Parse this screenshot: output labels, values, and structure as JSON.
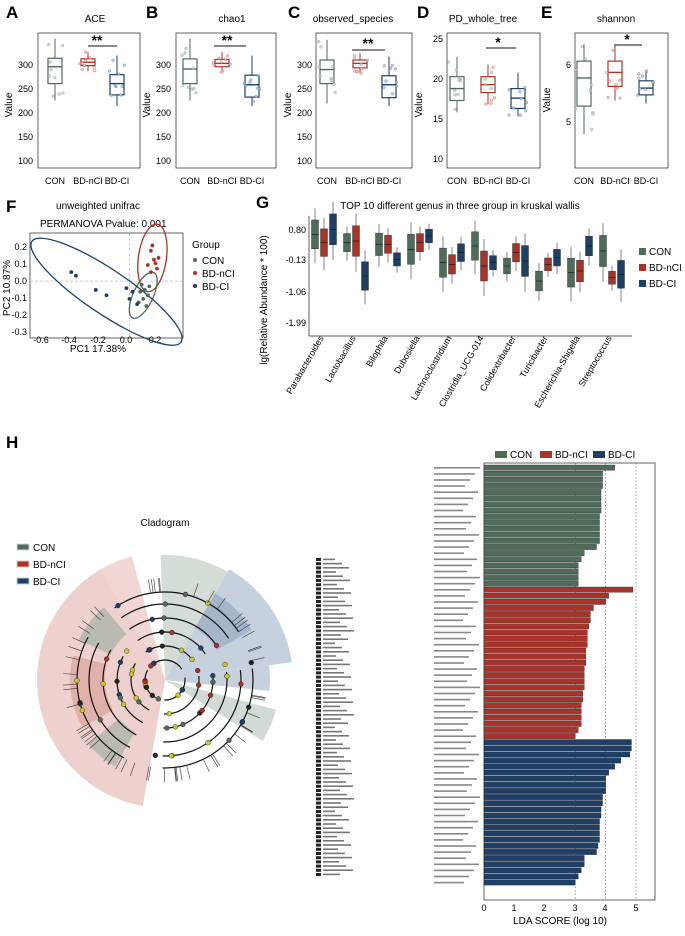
{
  "figure": {
    "panels": {
      "A": {
        "label": "A",
        "title": "ACE",
        "ylabel": "Value",
        "yticks": [
          "300",
          "250",
          "200",
          "150",
          "100"
        ],
        "sig": "**"
      },
      "B": {
        "label": "B",
        "title": "chao1",
        "ylabel": "Value",
        "yticks": [
          "300",
          "250",
          "200",
          "150",
          "100"
        ],
        "sig": "**"
      },
      "C": {
        "label": "C",
        "title": "observed_species",
        "ylabel": "Value",
        "yticks": [
          "300",
          "250",
          "200",
          "150",
          "100"
        ],
        "sig": "**"
      },
      "D": {
        "label": "D",
        "title": "PD_whole_tree",
        "ylabel": "Value",
        "yticks": [
          "25",
          "20",
          "15",
          "10"
        ],
        "sig": "*"
      },
      "E": {
        "label": "E",
        "title": "shannon",
        "ylabel": "Value",
        "yticks": [
          "6",
          "5"
        ],
        "sig": "*"
      }
    },
    "groups": [
      "CON",
      "BD-nCI",
      "BD-CI"
    ],
    "colors": {
      "CON": "#4f6b5a",
      "BD-nCI": "#a8332a",
      "BD-CI": "#1f3f66",
      "CON_fill": "#c9d3cc",
      "BD-nCI_fill": "#e8c2bd",
      "BD-CI_fill": "#b9c6d6"
    },
    "panelF": {
      "label": "F",
      "title": "unweighted unifrac",
      "subtitle": "PERMANOVA Pvalue: 0.001",
      "xlabel": "PC1 17.38%",
      "ylabel": "PC2 10.87%",
      "xticks": [
        "-0.6",
        "-0.4",
        "-0.2",
        "0.0",
        "0.2"
      ],
      "yticks": [
        "0.2",
        "0.1",
        "0.0",
        "-0.1",
        "-0.2",
        "-0.3"
      ],
      "legend_title": "Group"
    },
    "panelG": {
      "label": "G",
      "title": "TOP 10 different genus in three group in kruskal wallis",
      "ylabel": "lg(Relative Abundance * 100)",
      "yticks": [
        "0.80",
        "-0.13",
        "-1.06",
        "-1.99"
      ],
      "genera": [
        "Parabacteroides",
        "Lactobacillus",
        "Bilophila",
        "Dubosiella",
        "Lachnoclostridium",
        "Clostridia_UCG-014",
        "Colidextribacter",
        "Turicibacter",
        "Escherichia-Shigella",
        "Streptococcus"
      ]
    },
    "panelH": {
      "label": "H",
      "cladogram_title": "Cladogram",
      "lda_xlabel": "LDA SCORE (log 10)",
      "lda_xticks": [
        "0",
        "1",
        "2",
        "3",
        "4",
        "5"
      ]
    }
  },
  "chart_data": [
    {
      "type": "box",
      "title": "ACE",
      "ylabel": "Value",
      "categories": [
        "CON",
        "BD-nCI",
        "BD-CI"
      ],
      "ylim": [
        90,
        330
      ],
      "series": [
        {
          "name": "CON",
          "q1": 240,
          "median": 270,
          "q3": 285,
          "min": 210,
          "max": 320
        },
        {
          "name": "BD-nCI",
          "q1": 272,
          "median": 278,
          "q3": 284,
          "min": 262,
          "max": 296
        },
        {
          "name": "BD-CI",
          "q1": 220,
          "median": 240,
          "q3": 256,
          "min": 200,
          "max": 290
        }
      ]
    },
    {
      "type": "box",
      "title": "chao1",
      "ylabel": "Value",
      "categories": [
        "CON",
        "BD-nCI",
        "BD-CI"
      ],
      "ylim": [
        90,
        330
      ],
      "series": [
        {
          "name": "CON",
          "q1": 240,
          "median": 266,
          "q3": 284,
          "min": 210,
          "max": 320
        },
        {
          "name": "BD-nCI",
          "q1": 270,
          "median": 276,
          "q3": 283,
          "min": 260,
          "max": 296
        },
        {
          "name": "BD-CI",
          "q1": 216,
          "median": 238,
          "q3": 255,
          "min": 200,
          "max": 290
        }
      ]
    },
    {
      "type": "box",
      "title": "observed_species",
      "ylabel": "Value",
      "categories": [
        "CON",
        "BD-nCI",
        "BD-CI"
      ],
      "ylim": [
        90,
        330
      ],
      "series": [
        {
          "name": "CON",
          "q1": 240,
          "median": 265,
          "q3": 282,
          "min": 205,
          "max": 318
        },
        {
          "name": "BD-nCI",
          "q1": 268,
          "median": 276,
          "q3": 282,
          "min": 258,
          "max": 294
        },
        {
          "name": "BD-CI",
          "q1": 215,
          "median": 238,
          "q3": 254,
          "min": 200,
          "max": 288
        }
      ]
    },
    {
      "type": "box",
      "title": "PD_whole_tree",
      "ylabel": "Value",
      "categories": [
        "CON",
        "BD-nCI",
        "BD-CI"
      ],
      "ylim": [
        9,
        26
      ],
      "series": [
        {
          "name": "CON",
          "q1": 17.5,
          "median": 19,
          "q3": 20.5,
          "min": 16,
          "max": 23
        },
        {
          "name": "BD-nCI",
          "q1": 18.5,
          "median": 19.5,
          "q3": 20.5,
          "min": 17,
          "max": 22
        },
        {
          "name": "BD-CI",
          "q1": 16.5,
          "median": 17.8,
          "q3": 19,
          "min": 15.5,
          "max": 21
        }
      ]
    },
    {
      "type": "box",
      "title": "shannon",
      "ylabel": "Value",
      "categories": [
        "CON",
        "BD-nCI",
        "BD-CI"
      ],
      "ylim": [
        4.3,
        6.7
      ],
      "series": [
        {
          "name": "CON",
          "q1": 5.4,
          "median": 5.9,
          "q3": 6.2,
          "min": 4.9,
          "max": 6.5
        },
        {
          "name": "BD-nCI",
          "q1": 5.75,
          "median": 6.0,
          "q3": 6.2,
          "min": 5.5,
          "max": 6.5
        },
        {
          "name": "BD-CI",
          "q1": 5.6,
          "median": 5.72,
          "q3": 5.85,
          "min": 5.45,
          "max": 6.05
        }
      ]
    },
    {
      "type": "scatter",
      "title": "unweighted unifrac",
      "xlabel": "PC1 17.38%",
      "ylabel": "PC2 10.87%",
      "xlim": [
        -0.65,
        0.35
      ],
      "ylim": [
        -0.32,
        0.27
      ],
      "series": [
        {
          "name": "CON",
          "points": [
            [
              0.08,
              -0.02
            ],
            [
              0.1,
              -0.05
            ],
            [
              0.12,
              -0.08
            ],
            [
              0.09,
              -0.1
            ],
            [
              0.06,
              -0.12
            ],
            [
              0.11,
              -0.14
            ],
            [
              0.07,
              -0.06
            ],
            [
              0.13,
              -0.03
            ]
          ]
        },
        {
          "name": "BD-nCI",
          "points": [
            [
              0.14,
              0.17
            ],
            [
              0.16,
              0.12
            ],
            [
              0.17,
              0.1
            ],
            [
              0.12,
              0.09
            ],
            [
              0.18,
              0.07
            ],
            [
              0.14,
              0.05
            ],
            [
              0.15,
              0.2
            ],
            [
              0.19,
              0.13
            ]
          ]
        },
        {
          "name": "BD-CI",
          "points": [
            [
              -0.38,
              0.05
            ],
            [
              -0.35,
              0.03
            ],
            [
              -0.22,
              -0.05
            ],
            [
              -0.15,
              -0.08
            ],
            [
              0.02,
              -0.06
            ],
            [
              0.0,
              -0.1
            ],
            [
              0.05,
              -0.13
            ],
            [
              -0.02,
              -0.04
            ]
          ]
        }
      ]
    },
    {
      "type": "box",
      "title": "TOP 10 different genus in three group in kruskal wallis",
      "ylabel": "lg(Relative Abundance * 100)",
      "ylim": [
        -2.4,
        1.2
      ],
      "categories": [
        "Parabacteroides",
        "Lactobacillus",
        "Bilophila",
        "Dubosiella",
        "Lachnoclostridium",
        "Clostridia_UCG-014",
        "Colidextribacter",
        "Turicibacter",
        "Escherichia-Shigella",
        "Streptococcus"
      ],
      "series": [
        {
          "name": "CON",
          "medians": [
            0.65,
            0.4,
            0.35,
            0.2,
            -0.2,
            0.3,
            -0.3,
            -0.75,
            -0.5,
            0.15
          ]
        },
        {
          "name": "BD-nCI",
          "medians": [
            0.4,
            0.45,
            0.35,
            0.4,
            -0.25,
            -0.3,
            0.1,
            -0.25,
            -0.45,
            -0.65
          ]
        },
        {
          "name": "BD-CI",
          "medians": [
            0.8,
            -0.6,
            -0.1,
            0.6,
            0.1,
            -0.2,
            -0.15,
            -0.05,
            0.3,
            -0.55
          ]
        }
      ]
    },
    {
      "type": "bar",
      "title": "LDA SCORE (log 10)",
      "xlim": [
        0,
        5.2
      ],
      "series": [
        {
          "name": "BD-CI",
          "values": [
            4.85,
            4.85,
            4.8,
            4.5,
            4.3,
            4.1,
            4.0,
            4.0,
            4.0,
            3.9,
            3.9,
            3.85,
            3.85,
            3.8,
            3.8,
            3.8,
            3.8,
            3.75,
            3.7,
            3.3,
            3.3,
            3.2,
            3.1,
            3.0
          ]
        },
        {
          "name": "BD-nCI",
          "values": [
            4.9,
            4.1,
            4.0,
            3.6,
            3.5,
            3.5,
            3.45,
            3.4,
            3.4,
            3.4,
            3.35,
            3.35,
            3.35,
            3.3,
            3.3,
            3.3,
            3.3,
            3.25,
            3.25,
            3.2,
            3.2,
            3.2,
            3.2,
            3.1,
            3.0
          ]
        },
        {
          "name": "CON",
          "values": [
            4.3,
            3.9,
            3.9,
            3.9,
            3.85,
            3.85,
            3.85,
            3.85,
            3.8,
            3.8,
            3.8,
            3.8,
            3.8,
            3.7,
            3.3,
            3.2,
            3.1,
            3.1,
            3.1,
            3.1
          ]
        }
      ]
    }
  ]
}
